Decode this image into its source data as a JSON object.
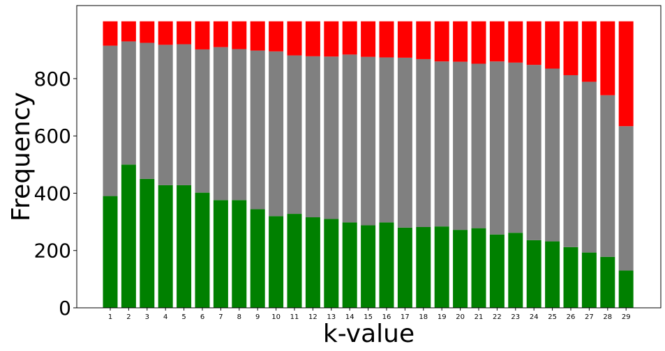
{
  "chart_data": {
    "type": "bar",
    "stacked": true,
    "title": "",
    "xlabel": "k-value",
    "ylabel": "Frequency",
    "ylim": [
      0,
      1000
    ],
    "yticks": [
      0,
      200,
      400,
      600,
      800
    ],
    "categories": [
      "1",
      "2",
      "3",
      "4",
      "5",
      "6",
      "7",
      "8",
      "9",
      "10",
      "11",
      "12",
      "13",
      "14",
      "15",
      "16",
      "17",
      "18",
      "19",
      "20",
      "21",
      "22",
      "23",
      "24",
      "25",
      "26",
      "27",
      "28",
      "29"
    ],
    "series": [
      {
        "color": "#008000",
        "values": [
          390,
          500,
          450,
          428,
          428,
          402,
          376,
          376,
          344,
          320,
          328,
          316,
          310,
          298,
          288,
          298,
          280,
          282,
          284,
          272,
          278,
          256,
          262,
          236,
          232,
          212,
          193,
          178,
          130
        ]
      },
      {
        "color": "#808080",
        "values": [
          525,
          430,
          475,
          490,
          492,
          500,
          534,
          527,
          554,
          575,
          553,
          562,
          567,
          586,
          588,
          576,
          593,
          586,
          576,
          587,
          574,
          604,
          594,
          612,
          603,
          600,
          596,
          564,
          504
        ]
      },
      {
        "color": "#ff0000",
        "values": [
          85,
          70,
          75,
          82,
          80,
          98,
          90,
          97,
          102,
          105,
          119,
          122,
          123,
          116,
          124,
          126,
          127,
          132,
          140,
          141,
          148,
          140,
          144,
          152,
          165,
          188,
          211,
          258,
          366
        ]
      }
    ],
    "grid": false,
    "legend": "none"
  }
}
